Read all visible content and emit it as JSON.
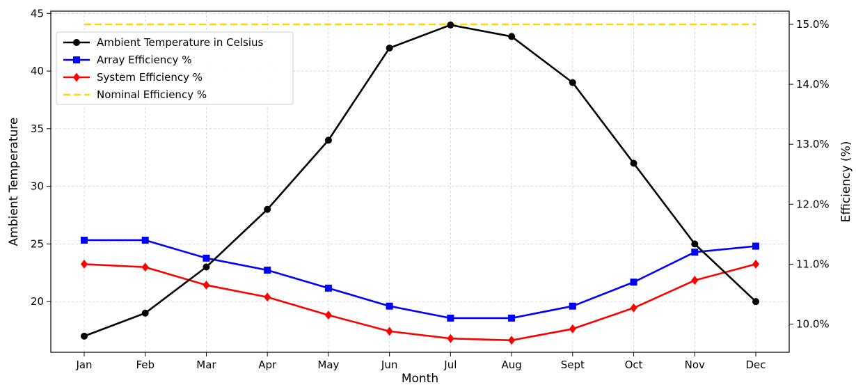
{
  "chart_data": {
    "type": "line",
    "title": "",
    "xlabel": "Month",
    "ylabel_left": "Ambient Temperature",
    "ylabel_right": "Efficiency (%)",
    "categories": [
      "Jan",
      "Feb",
      "Mar",
      "Apr",
      "May",
      "Jun",
      "Jul",
      "Aug",
      "Sept",
      "Oct",
      "Nov",
      "Dec"
    ],
    "y_left_range": [
      15.6,
      45.2
    ],
    "y_left_ticks": [
      20,
      25,
      30,
      35,
      40,
      45
    ],
    "y_right_range": [
      9.53,
      15.22
    ],
    "y_right_ticks": [
      10.0,
      11.0,
      12.0,
      13.0,
      14.0,
      15.0
    ],
    "y_right_tick_labels": [
      "10.0%",
      "11.0%",
      "12.0%",
      "13.0%",
      "14.0%",
      "15.0%"
    ],
    "grid": true,
    "legend_position": "top-left",
    "series": [
      {
        "name": "Ambient Temperature in Celsius",
        "axis": "left",
        "color": "#000000",
        "marker": "circle",
        "dashed": false,
        "values": [
          17,
          19,
          23,
          28,
          34,
          42,
          44,
          43,
          39,
          32,
          25,
          20
        ]
      },
      {
        "name": "Array Efficiency %",
        "axis": "right",
        "color": "#0000ff",
        "marker": "square",
        "dashed": false,
        "values": [
          11.4,
          11.4,
          11.1,
          10.9,
          10.6,
          10.3,
          10.1,
          10.1,
          10.3,
          10.7,
          11.2,
          11.3
        ]
      },
      {
        "name": "System Efficiency %",
        "axis": "right",
        "color": "#ff0000",
        "marker": "diamond",
        "dashed": false,
        "values": [
          11.0,
          10.95,
          10.65,
          10.45,
          10.15,
          9.88,
          9.76,
          9.73,
          9.92,
          10.27,
          10.73,
          11.0
        ]
      },
      {
        "name": "Nominal Efficiency %",
        "axis": "right",
        "color": "#ffd700",
        "marker": "none",
        "dashed": true,
        "values": [
          15.0,
          15.0,
          15.0,
          15.0,
          15.0,
          15.0,
          15.0,
          15.0,
          15.0,
          15.0,
          15.0,
          15.0
        ]
      }
    ]
  }
}
